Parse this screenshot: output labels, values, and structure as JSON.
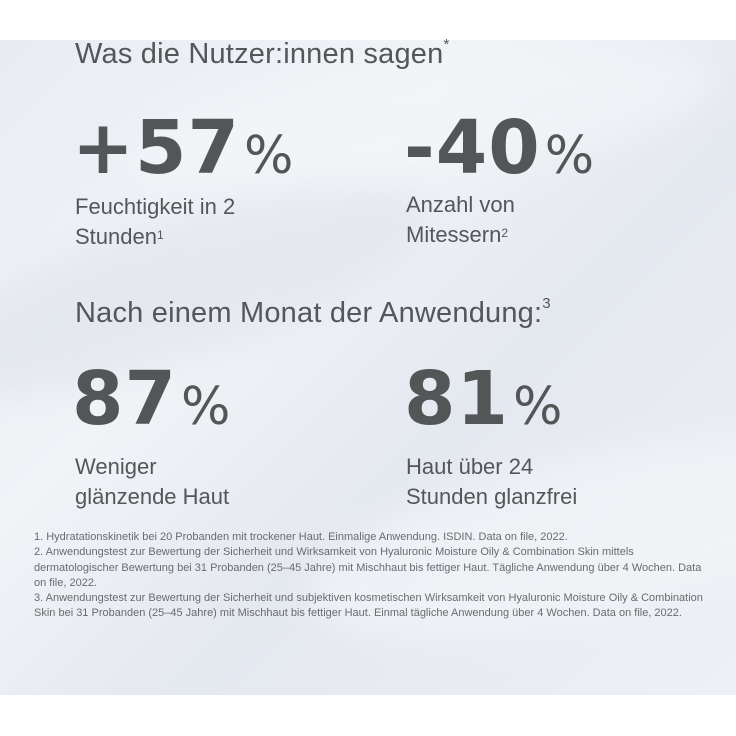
{
  "heading1": "Was die Nutzer:innen sagen",
  "heading1_mark": "*",
  "heading2": "Nach einem Monat der Anwendung:",
  "heading2_mark": "3",
  "stats": [
    {
      "value": "+57",
      "unit": "%",
      "line1": "Feuchtigkeit in 2",
      "line2": "Stunden",
      "mark": "1"
    },
    {
      "value": "-40",
      "unit": "%",
      "line1": "Anzahl von",
      "line2": "Mitessern",
      "mark": "2"
    },
    {
      "value": "87",
      "unit": "%",
      "line1": "Weniger",
      "line2": "glänzende Haut",
      "mark": ""
    },
    {
      "value": "81",
      "unit": "%",
      "line1": "Haut über 24",
      "line2": "Stunden glanzfrei",
      "mark": ""
    }
  ],
  "footnotes": [
    "1. Hydratationskinetik bei 20 Probanden mit trockener Haut. Einmalige Anwendung. ISDIN. Data on file, 2022.",
    "2. Anwendungstest zur Bewertung der Sicherheit und Wirksamkeit von Hyaluronic Moisture Oily & Combination Skin mittels dermatologischer Bewertung bei 31 Probanden (25–45 Jahre) mit Mischhaut bis fettiger Haut. Tägliche Anwendung über 4 Wochen. Data on file, 2022.",
    "3. Anwendungstest zur Bewertung der Sicherheit und subjektiven kosmetischen Wirksamkeit von Hyaluronic Moisture Oily & Combination Skin bei 31 Probanden (25–45 Jahre) mit Mischhaut bis fettiger Haut. Einmal tägliche Anwendung über 4 Wochen. Data on file, 2022."
  ]
}
